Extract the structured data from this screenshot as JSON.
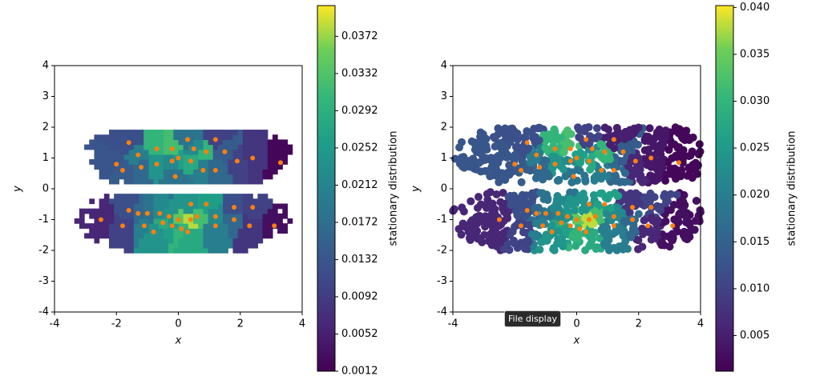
{
  "chart_data": [
    {
      "type": "voronoi",
      "xlabel": "x",
      "ylabel": "y",
      "colorbar_label": "stationary distribution",
      "colormap": "viridis",
      "center_color": "#ff7f0e",
      "xlim": [
        -4,
        4
      ],
      "ylim": [
        -4,
        4
      ],
      "xticks": [
        -4,
        -2,
        0,
        2,
        4
      ],
      "yticks": [
        -4,
        -3,
        -2,
        -1,
        0,
        1,
        2,
        3,
        4
      ],
      "clim": [
        0.0012,
        0.0405
      ],
      "cticks": [
        0.0012,
        0.0052,
        0.0092,
        0.0132,
        0.0172,
        0.0212,
        0.0252,
        0.0292,
        0.0332,
        0.0372
      ],
      "x": [
        -1.6,
        -2.0,
        -1.8,
        -1.3,
        -1.2,
        -0.7,
        -0.7,
        -0.2,
        -0.2,
        0.0,
        0.3,
        0.4,
        0.5,
        0.8,
        0.9,
        1.2,
        1.2,
        1.5,
        1.9,
        2.4,
        3.3,
        -0.1,
        -2.5,
        -1.8,
        -1.6,
        -1.3,
        -1.1,
        -1.0,
        -0.8,
        -0.6,
        -0.5,
        -0.2,
        -0.3,
        0.0,
        0.1,
        0.3,
        0.4,
        0.4,
        0.6,
        0.9,
        1.2,
        1.2,
        1.8,
        1.8,
        2.3,
        2.4,
        3.1
      ],
      "y": [
        1.5,
        0.8,
        0.6,
        1.1,
        0.7,
        0.8,
        1.3,
        1.3,
        0.9,
        1.0,
        1.6,
        0.9,
        1.3,
        0.6,
        1.2,
        1.6,
        0.6,
        1.2,
        0.9,
        1.0,
        0.85,
        0.4,
        -1.0,
        -1.2,
        -0.7,
        -0.8,
        -1.2,
        -0.8,
        -1.4,
        -0.8,
        -1.1,
        -1.2,
        -0.9,
        -1.0,
        -1.3,
        -1.4,
        -1.0,
        -0.5,
        -0.9,
        -0.5,
        -0.9,
        -1.2,
        -0.6,
        -1.0,
        -1.2,
        -0.6,
        -1.2
      ],
      "values": [
        0.012,
        0.013,
        0.014,
        0.02,
        0.016,
        0.024,
        0.03,
        0.032,
        0.022,
        0.026,
        0.018,
        0.028,
        0.022,
        0.02,
        0.03,
        0.01,
        0.016,
        0.014,
        0.01,
        0.008,
        0.002,
        0.018,
        0.006,
        0.01,
        0.012,
        0.016,
        0.02,
        0.018,
        0.024,
        0.022,
        0.028,
        0.026,
        0.024,
        0.034,
        0.03,
        0.028,
        0.038,
        0.024,
        0.032,
        0.026,
        0.022,
        0.02,
        0.012,
        0.016,
        0.008,
        0.01,
        0.003
      ]
    },
    {
      "type": "scatter",
      "xlabel": "x",
      "ylabel": "y",
      "colorbar_label": "stationary distribution",
      "colormap": "viridis",
      "center_color": "#ff7f0e",
      "xlim": [
        -4,
        4
      ],
      "ylim": [
        -4,
        4
      ],
      "xticks": [
        -4,
        -2,
        0,
        2,
        4
      ],
      "yticks": [
        -4,
        -3,
        -2,
        -1,
        0,
        1,
        2,
        3,
        4
      ],
      "clim": [
        0.0012,
        0.0402
      ],
      "cticks": [
        0.005,
        {
          "value": 0.01,
          "label": "0.010"
        },
        0.015,
        {
          "value": 0.02,
          "label": "0.020"
        },
        0.025,
        {
          "value": 0.03,
          "label": "0.030"
        },
        0.035,
        {
          "value": 0.04,
          "label": "0.040"
        }
      ],
      "x": [
        -1.6,
        -2.0,
        -1.8,
        -1.3,
        -1.2,
        -0.7,
        -0.7,
        -0.2,
        -0.2,
        0.0,
        0.3,
        0.4,
        0.5,
        0.8,
        0.9,
        1.2,
        1.2,
        1.5,
        1.9,
        2.4,
        3.3,
        -0.1,
        -2.5,
        -1.8,
        -1.6,
        -1.3,
        -1.1,
        -1.0,
        -0.8,
        -0.6,
        -0.5,
        -0.2,
        -0.3,
        0.0,
        0.1,
        0.3,
        0.4,
        0.4,
        0.6,
        0.9,
        1.2,
        1.2,
        1.8,
        1.8,
        2.3,
        2.4,
        3.1
      ],
      "y": [
        1.5,
        0.8,
        0.6,
        1.1,
        0.7,
        0.8,
        1.3,
        1.3,
        0.9,
        1.0,
        1.6,
        0.9,
        1.3,
        0.6,
        1.2,
        1.6,
        0.6,
        1.2,
        0.9,
        1.0,
        0.85,
        0.4,
        -1.0,
        -1.2,
        -0.7,
        -0.8,
        -1.2,
        -0.8,
        -1.4,
        -0.8,
        -1.1,
        -1.2,
        -0.9,
        -1.0,
        -1.3,
        -1.4,
        -1.0,
        -0.5,
        -0.9,
        -0.5,
        -0.9,
        -1.2,
        -0.6,
        -1.0,
        -1.2,
        -0.6,
        -1.2
      ],
      "values": [
        0.012,
        0.013,
        0.014,
        0.02,
        0.016,
        0.024,
        0.03,
        0.032,
        0.022,
        0.026,
        0.01,
        0.028,
        0.022,
        0.02,
        0.03,
        0.005,
        0.016,
        0.014,
        0.006,
        0.004,
        0.002,
        0.018,
        0.006,
        0.01,
        0.012,
        0.016,
        0.02,
        0.018,
        0.024,
        0.022,
        0.028,
        0.026,
        0.024,
        0.034,
        0.03,
        0.028,
        0.038,
        0.024,
        0.032,
        0.026,
        0.022,
        0.02,
        0.008,
        0.016,
        0.006,
        0.01,
        0.003
      ]
    }
  ],
  "tooltip": "File display"
}
